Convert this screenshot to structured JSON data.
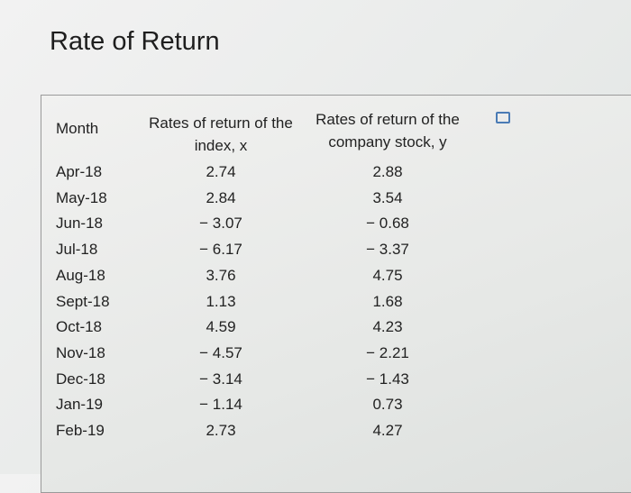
{
  "title": "Rate of Return",
  "table": {
    "headers": [
      "Month",
      "Rates of return of the index, x",
      "Rates of return of the company stock, y"
    ],
    "rows": [
      [
        "Apr-18",
        "2.74",
        "2.88"
      ],
      [
        "May-18",
        "2.84",
        "3.54"
      ],
      [
        "Jun-18",
        "− 3.07",
        "− 0.68"
      ],
      [
        "Jul-18",
        "− 6.17",
        "− 3.37"
      ],
      [
        "Aug-18",
        "3.76",
        "4.75"
      ],
      [
        "Sept-18",
        "1.13",
        "1.68"
      ],
      [
        "Oct-18",
        "4.59",
        "4.23"
      ],
      [
        "Nov-18",
        "− 4.57",
        "− 2.21"
      ],
      [
        "Dec-18",
        "− 3.14",
        "− 1.43"
      ],
      [
        "Jan-19",
        "− 1.14",
        "0.73"
      ],
      [
        "Feb-19",
        "2.73",
        "4.27"
      ]
    ]
  }
}
